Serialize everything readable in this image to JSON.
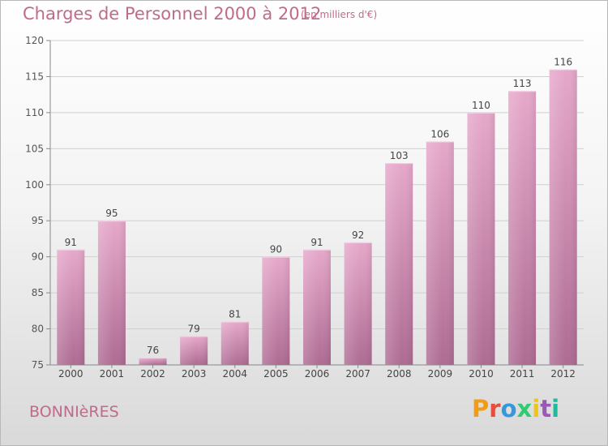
{
  "header": {
    "title": "Charges de Personnel 2000 à 2012",
    "subtitle": "(en milliers d'€)"
  },
  "footer": {
    "town": "BONNIèRES",
    "brand": "Proxiti"
  },
  "colors": {
    "title": "#c06a8c",
    "bar_light": "#e6a8ca",
    "bar_dark": "#ae6b93",
    "grid": "#d0d0d0",
    "brand_letters": [
      "#f39c12",
      "#e74c3c",
      "#3498db",
      "#2ecc71",
      "#f1c40f",
      "#9b59b6",
      "#1abc9c"
    ]
  },
  "chart_data": {
    "type": "bar",
    "title": "Charges de Personnel 2000 à 2012",
    "subtitle": "(en milliers d'€)",
    "categories": [
      "2000",
      "2001",
      "2002",
      "2003",
      "2004",
      "2005",
      "2006",
      "2007",
      "2008",
      "2009",
      "2010",
      "2011",
      "2012"
    ],
    "values": [
      91,
      95,
      76,
      79,
      81,
      90,
      91,
      92,
      103,
      106,
      110,
      113,
      116
    ],
    "ylim": [
      75,
      120
    ],
    "yticks": [
      75,
      80,
      85,
      90,
      95,
      100,
      105,
      110,
      115,
      120
    ],
    "grid": true
  }
}
